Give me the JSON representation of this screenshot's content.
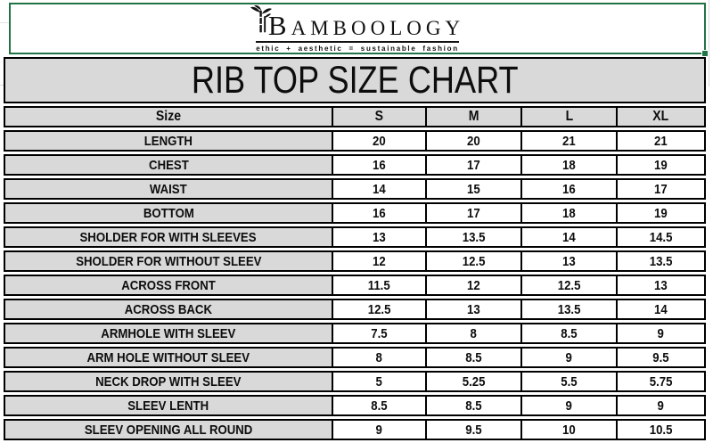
{
  "logo": {
    "brand": "BAMBOOLOGY",
    "tagline": "ethic + aesthetic = sustainable fashion",
    "icon": "bamboo-icon"
  },
  "title": "RIB TOP SIZE CHART",
  "size_chart": {
    "columns": [
      "Size",
      "S",
      "M",
      "L",
      "XL"
    ],
    "rows": [
      {
        "label": "LENGTH",
        "values": [
          "20",
          "20",
          "21",
          "21"
        ]
      },
      {
        "label": "CHEST",
        "values": [
          "16",
          "17",
          "18",
          "19"
        ]
      },
      {
        "label": "WAIST",
        "values": [
          "14",
          "15",
          "16",
          "17"
        ]
      },
      {
        "label": "BOTTOM",
        "values": [
          "16",
          "17",
          "18",
          "19"
        ]
      },
      {
        "label": "SHOLDER FOR WITH SLEEVES",
        "values": [
          "13",
          "13.5",
          "14",
          "14.5"
        ]
      },
      {
        "label": "SHOLDER FOR WITHOUT SLEEV",
        "values": [
          "12",
          "12.5",
          "13",
          "13.5"
        ]
      },
      {
        "label": "ACROSS FRONT",
        "values": [
          "11.5",
          "12",
          "12.5",
          "13"
        ]
      },
      {
        "label": "ACROSS BACK",
        "values": [
          "12.5",
          "13",
          "13.5",
          "14"
        ]
      },
      {
        "label": "ARMHOLE WITH SLEEV",
        "values": [
          "7.5",
          "8",
          "8.5",
          "9"
        ]
      },
      {
        "label": "ARM HOLE WITHOUT SLEEV",
        "values": [
          "8",
          "8.5",
          "9",
          "9.5"
        ]
      },
      {
        "label": "NECK DROP WITH SLEEV",
        "values": [
          "5",
          "5.25",
          "5.5",
          "5.75"
        ]
      },
      {
        "label": "SLEEV LENTH",
        "values": [
          "8.5",
          "8.5",
          "9",
          "9"
        ]
      },
      {
        "label": "SLEEV OPENING ALL ROUND",
        "values": [
          "9",
          "9.5",
          "10",
          "10.5"
        ]
      }
    ]
  },
  "colors": {
    "selection_green": "#217346",
    "header_fill": "#d9d9d9",
    "border_black": "#000000",
    "cell_white": "#ffffff"
  }
}
